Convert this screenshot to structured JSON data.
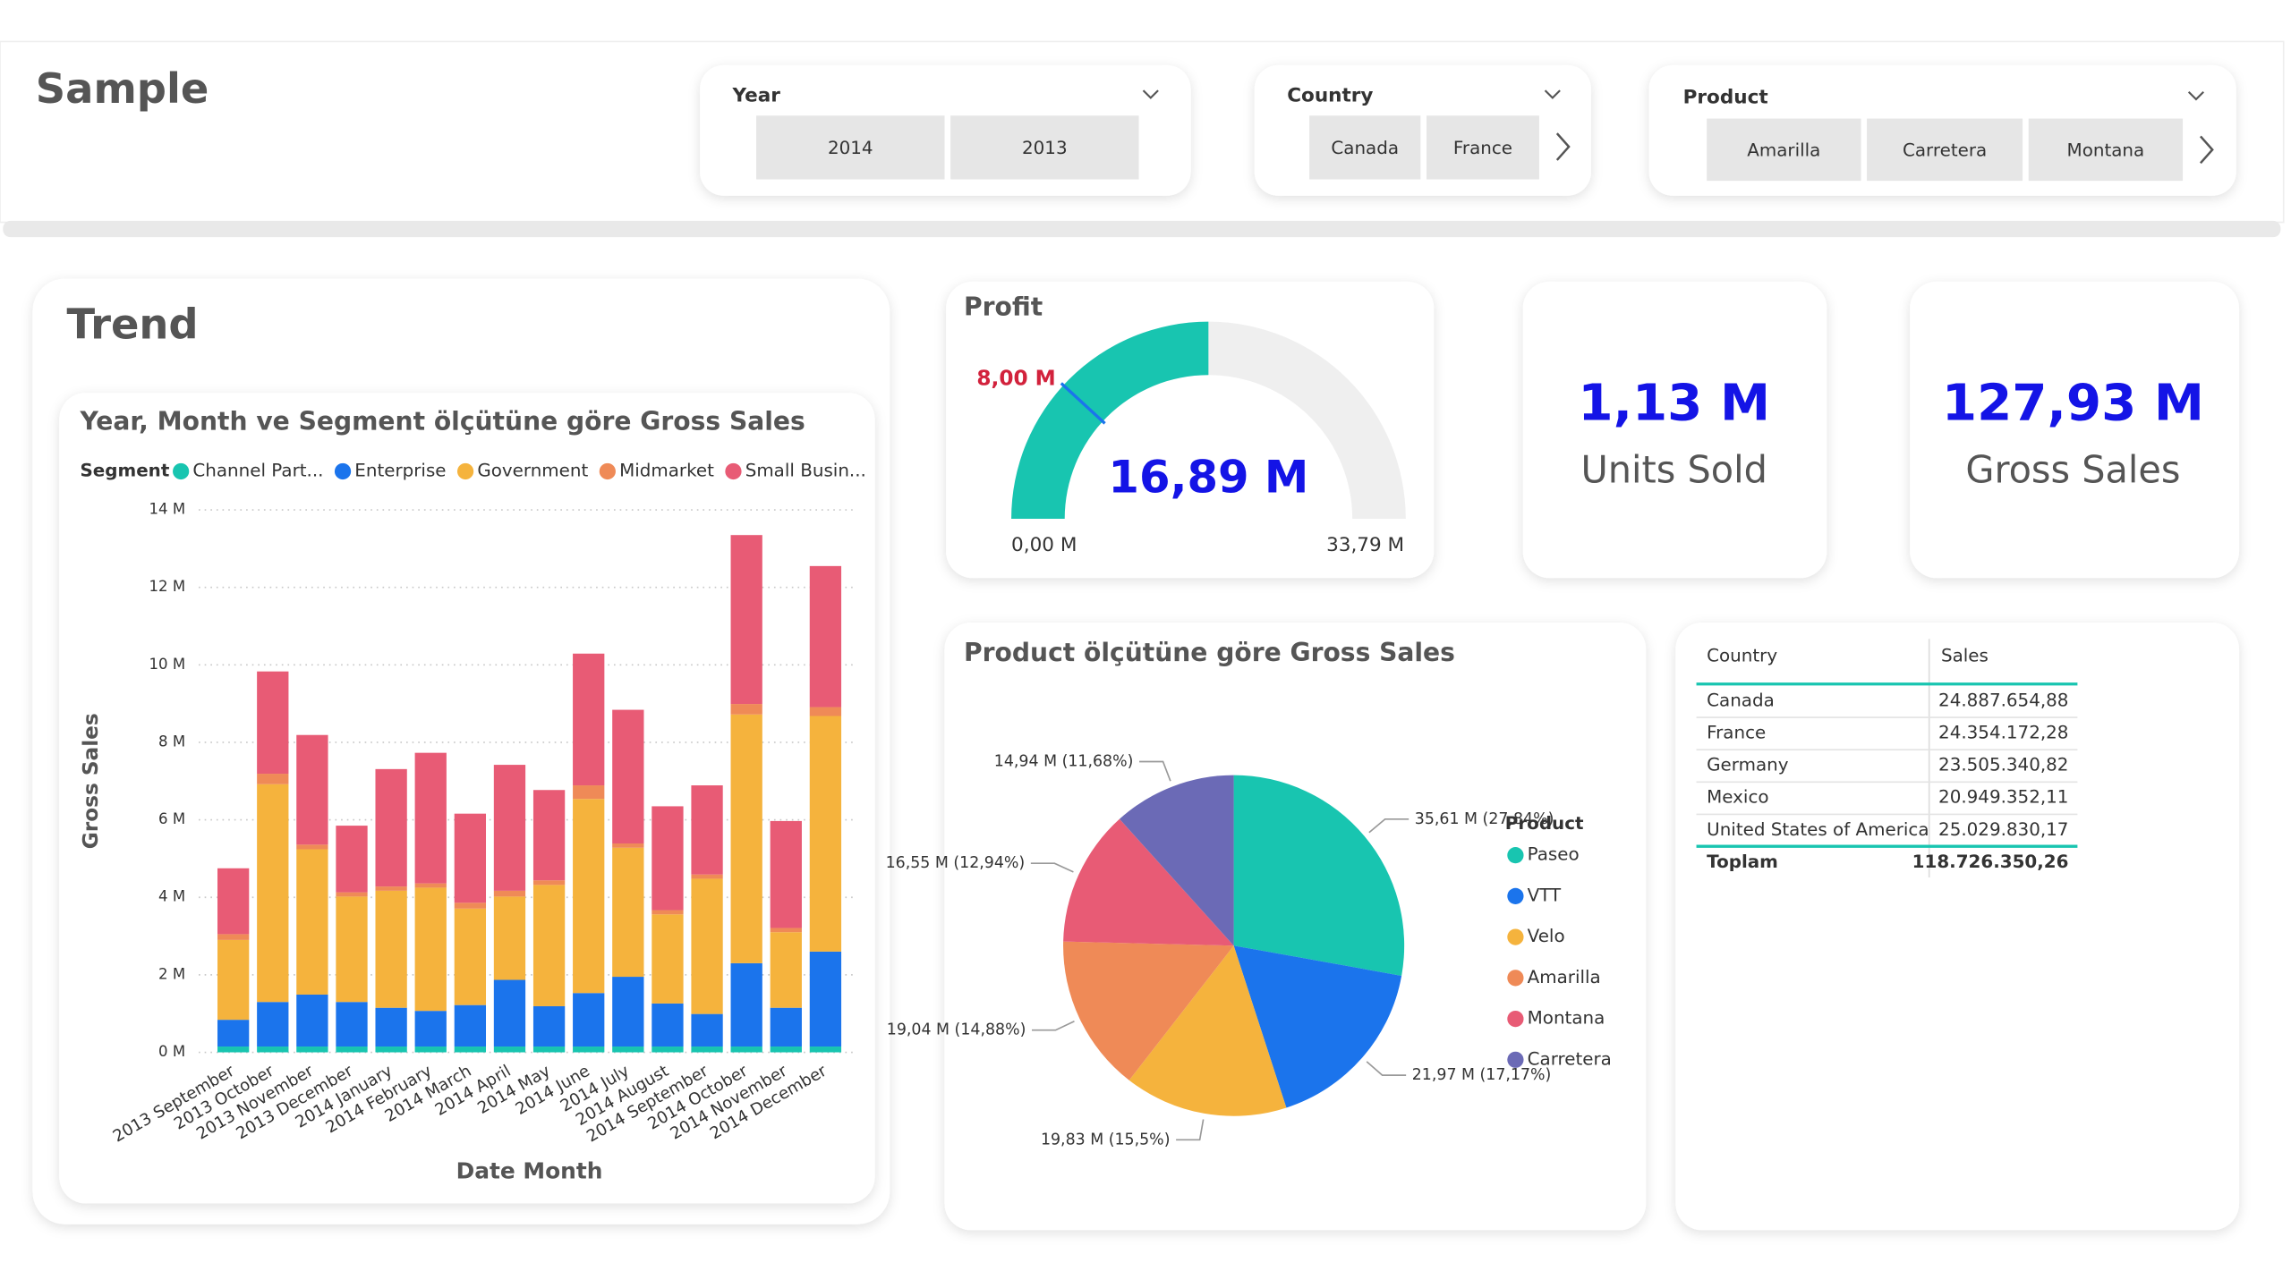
{
  "header": {
    "title": "Sample"
  },
  "slicers": [
    {
      "title": "Year",
      "items": [
        "2014",
        "2013"
      ]
    },
    {
      "title": "Country",
      "items": [
        "Canada",
        "France"
      ]
    },
    {
      "title": "Product",
      "items": [
        "Amarilla",
        "Carretera",
        "Montana"
      ]
    }
  ],
  "section_title": "Trend",
  "cards": [
    {
      "value": "1,13 M",
      "label": "Units Sold"
    },
    {
      "value": "127,93 M",
      "label": "Gross Sales"
    }
  ],
  "table": {
    "columns": [
      "Country",
      "Sales"
    ],
    "rows": [
      [
        "Canada",
        "24.887.654,88"
      ],
      [
        "France",
        "24.354.172,28"
      ],
      [
        "Germany",
        "23.505.340,82"
      ],
      [
        "Mexico",
        "20.949.352,11"
      ],
      [
        "United States of America",
        "25.029.830,17"
      ]
    ],
    "total": [
      "Toplam",
      "118.726.350,26"
    ]
  },
  "chart_data": [
    {
      "type": "stacked_bar",
      "title": "Year, Month ve Segment ölçütüne göre Gross Sales",
      "legend_title": "Segment",
      "x_label": "Date Month",
      "y_label": "Gross Sales",
      "categories": [
        "2013 September",
        "2013 October",
        "2013 November",
        "2013 December",
        "2014 January",
        "2014 February",
        "2014 March",
        "2014 April",
        "2014 May",
        "2014 June",
        "2014 July",
        "2014 August",
        "2014 September",
        "2014 October",
        "2014 November",
        "2014 December"
      ],
      "series": [
        {
          "name": "Channel Part...",
          "color": "#18c5b0",
          "values": [
            0.15,
            0.15,
            0.15,
            0.15,
            0.15,
            0.15,
            0.15,
            0.15,
            0.15,
            0.15,
            0.15,
            0.15,
            0.15,
            0.15,
            0.15,
            0.15
          ]
        },
        {
          "name": "Enterprise",
          "color": "#1b74ec",
          "values": [
            0.69,
            1.15,
            1.34,
            1.15,
            1.0,
            0.92,
            1.07,
            1.72,
            1.04,
            1.38,
            1.8,
            1.11,
            0.84,
            2.15,
            1.0,
            2.45
          ]
        },
        {
          "name": "Government",
          "color": "#f5b33d",
          "values": [
            2.06,
            5.62,
            3.75,
            2.72,
            3.02,
            3.18,
            2.49,
            2.15,
            3.13,
            5.01,
            3.33,
            2.3,
            3.49,
            6.42,
            1.95,
            6.08
          ]
        },
        {
          "name": "Midmarket",
          "color": "#ef8a57",
          "values": [
            0.15,
            0.27,
            0.12,
            0.11,
            0.11,
            0.11,
            0.15,
            0.15,
            0.12,
            0.35,
            0.11,
            0.11,
            0.11,
            0.27,
            0.11,
            0.23
          ]
        },
        {
          "name": "Small Busin...",
          "color": "#e85b75",
          "values": [
            1.7,
            2.64,
            2.83,
            1.72,
            3.03,
            3.37,
            2.3,
            3.25,
            2.33,
            3.4,
            3.45,
            2.68,
            2.3,
            4.36,
            2.76,
            3.64
          ]
        }
      ],
      "ylim": [
        0,
        14
      ],
      "yticks": [
        {
          "value": 0,
          "label": "0 M"
        },
        {
          "value": 2,
          "label": "2 M"
        },
        {
          "value": 4,
          "label": "4 M"
        },
        {
          "value": 6,
          "label": "6 M"
        },
        {
          "value": 8,
          "label": "8 M"
        },
        {
          "value": 10,
          "label": "10 M"
        },
        {
          "value": 12,
          "label": "12 M"
        },
        {
          "value": 14,
          "label": "14 M"
        }
      ],
      "grid": true
    },
    {
      "type": "gauge",
      "title": "Profit",
      "values": [
        16.89
      ],
      "value_labels": [
        "16,89 M"
      ],
      "target": 8,
      "target_label": "8,00 M",
      "ylim": [
        0,
        33.79
      ],
      "yticks": [
        {
          "value": 0,
          "label": "0,00 M"
        },
        {
          "value": 33.79,
          "label": "33,79 M"
        }
      ],
      "color": "#18c5b0",
      "track_color": "#efefef",
      "target_color": "#1b74ec"
    },
    {
      "type": "pie",
      "title": "Product ölçütüne göre Gross Sales",
      "legend_title": "Product",
      "categories": [
        "Paseo",
        "VTT",
        "Velo",
        "Amarilla",
        "Montana",
        "Carretera"
      ],
      "values": [
        35.61,
        21.97,
        19.83,
        19.04,
        16.55,
        14.94
      ],
      "value_labels": [
        "35,61 M (27,84%)",
        "21,97 M (17,17%)",
        "19,83 M (15,5%)",
        "19,04 M (14,88%)",
        "16,55 M (12,94%)",
        "14,94 M (11,68%)"
      ],
      "colors": [
        "#18c5b0",
        "#1b74ec",
        "#f5b33d",
        "#ef8a57",
        "#e85b75",
        "#6b6ab6"
      ]
    }
  ]
}
